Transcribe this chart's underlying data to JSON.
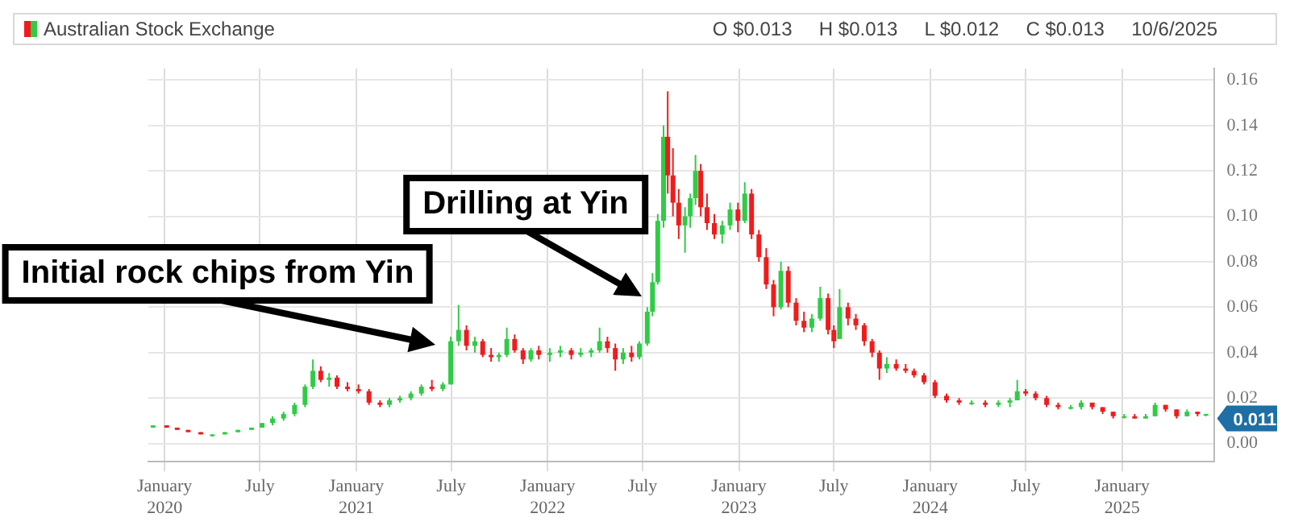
{
  "chart_data": {
    "type": "candlestick",
    "title": "Australian Stock Exchange",
    "subtitle": "O $0.013     H $0.013     L $0.012     C $0.013     10/6/2025",
    "annotations": [
      "Initial rock chips from Yin",
      "Drilling at Yin",
      {
        "text": "0.011",
        "y": 0.011
      }
    ],
    "x": [
      "2019-12-10",
      "2020-01-05",
      "2020-01-25",
      "2020-02-15",
      "2020-03-10",
      "2020-04-01",
      "2020-04-25",
      "2020-05-20",
      "2020-06-15",
      "2020-07-05",
      "2020-07-25",
      "2020-08-15",
      "2020-09-05",
      "2020-09-25",
      "2020-10-10",
      "2020-10-25",
      "2020-11-10",
      "2020-11-25",
      "2020-12-15",
      "2021-01-05",
      "2021-01-25",
      "2021-02-15",
      "2021-03-05",
      "2021-03-25",
      "2021-04-15",
      "2021-05-05",
      "2021-05-25",
      "2021-06-15",
      "2021-06-30",
      "2021-07-15",
      "2021-07-30",
      "2021-08-15",
      "2021-08-30",
      "2021-09-15",
      "2021-09-30",
      "2021-10-15",
      "2021-10-30",
      "2021-11-15",
      "2021-11-30",
      "2021-12-15",
      "2022-01-05",
      "2022-01-25",
      "2022-02-15",
      "2022-03-05",
      "2022-03-25",
      "2022-04-10",
      "2022-04-25",
      "2022-05-10",
      "2022-05-25",
      "2022-06-10",
      "2022-06-25",
      "2022-07-10",
      "2022-07-20",
      "2022-07-30",
      "2022-08-10",
      "2022-08-18",
      "2022-08-28",
      "2022-09-08",
      "2022-09-20",
      "2022-09-30",
      "2022-10-10",
      "2022-10-20",
      "2022-11-01",
      "2022-11-15",
      "2022-11-30",
      "2022-12-15",
      "2022-12-30",
      "2023-01-12",
      "2023-01-25",
      "2023-02-08",
      "2023-02-22",
      "2023-03-08",
      "2023-03-22",
      "2023-04-05",
      "2023-04-20",
      "2023-05-05",
      "2023-05-20",
      "2023-06-05",
      "2023-06-20",
      "2023-07-01",
      "2023-07-12",
      "2023-07-28",
      "2023-08-12",
      "2023-08-28",
      "2023-09-12",
      "2023-09-26",
      "2023-10-10",
      "2023-10-28",
      "2023-11-15",
      "2023-12-01",
      "2023-12-20",
      "2024-01-10",
      "2024-02-01",
      "2024-02-25",
      "2024-03-20",
      "2024-04-15",
      "2024-05-10",
      "2024-06-01",
      "2024-06-15",
      "2024-07-01",
      "2024-07-20",
      "2024-08-10",
      "2024-09-01",
      "2024-09-25",
      "2024-10-15",
      "2024-11-05",
      "2024-11-25",
      "2024-12-15",
      "2025-01-05",
      "2025-01-25",
      "2025-02-15",
      "2025-03-05",
      "2025-03-25",
      "2025-04-15",
      "2025-05-05",
      "2025-05-25",
      "2025-06-10"
    ],
    "ohlc": [
      [
        0.007,
        0.008,
        0.007,
        0.008
      ],
      [
        0.008,
        0.008,
        0.007,
        0.007
      ],
      [
        0.007,
        0.007,
        0.006,
        0.006
      ],
      [
        0.006,
        0.006,
        0.005,
        0.005
      ],
      [
        0.005,
        0.005,
        0.004,
        0.004
      ],
      [
        0.004,
        0.004,
        0.003,
        0.004
      ],
      [
        0.004,
        0.005,
        0.004,
        0.005
      ],
      [
        0.005,
        0.006,
        0.005,
        0.006
      ],
      [
        0.006,
        0.007,
        0.006,
        0.007
      ],
      [
        0.007,
        0.009,
        0.007,
        0.009
      ],
      [
        0.009,
        0.012,
        0.008,
        0.011
      ],
      [
        0.011,
        0.014,
        0.01,
        0.013
      ],
      [
        0.013,
        0.018,
        0.012,
        0.017
      ],
      [
        0.017,
        0.026,
        0.016,
        0.025
      ],
      [
        0.025,
        0.037,
        0.024,
        0.032
      ],
      [
        0.032,
        0.034,
        0.027,
        0.028
      ],
      [
        0.028,
        0.031,
        0.025,
        0.029
      ],
      [
        0.029,
        0.03,
        0.024,
        0.025
      ],
      [
        0.025,
        0.027,
        0.023,
        0.024
      ],
      [
        0.024,
        0.026,
        0.022,
        0.023
      ],
      [
        0.023,
        0.024,
        0.017,
        0.018
      ],
      [
        0.018,
        0.019,
        0.016,
        0.017
      ],
      [
        0.017,
        0.02,
        0.016,
        0.019
      ],
      [
        0.019,
        0.021,
        0.018,
        0.02
      ],
      [
        0.02,
        0.023,
        0.019,
        0.022
      ],
      [
        0.022,
        0.026,
        0.021,
        0.025
      ],
      [
        0.025,
        0.028,
        0.023,
        0.024
      ],
      [
        0.024,
        0.027,
        0.023,
        0.026
      ],
      [
        0.026,
        0.047,
        0.026,
        0.045
      ],
      [
        0.045,
        0.061,
        0.043,
        0.05
      ],
      [
        0.05,
        0.052,
        0.041,
        0.043
      ],
      [
        0.043,
        0.047,
        0.04,
        0.045
      ],
      [
        0.045,
        0.046,
        0.038,
        0.039
      ],
      [
        0.039,
        0.042,
        0.036,
        0.038
      ],
      [
        0.038,
        0.04,
        0.036,
        0.039
      ],
      [
        0.039,
        0.051,
        0.038,
        0.046
      ],
      [
        0.046,
        0.048,
        0.04,
        0.041
      ],
      [
        0.041,
        0.042,
        0.035,
        0.037
      ],
      [
        0.037,
        0.042,
        0.036,
        0.041
      ],
      [
        0.041,
        0.043,
        0.037,
        0.039
      ],
      [
        0.039,
        0.042,
        0.036,
        0.04
      ],
      [
        0.04,
        0.043,
        0.038,
        0.041
      ],
      [
        0.041,
        0.042,
        0.037,
        0.039
      ],
      [
        0.039,
        0.042,
        0.038,
        0.04
      ],
      [
        0.04,
        0.042,
        0.038,
        0.041
      ],
      [
        0.041,
        0.051,
        0.04,
        0.045
      ],
      [
        0.045,
        0.047,
        0.04,
        0.042
      ],
      [
        0.042,
        0.044,
        0.032,
        0.037
      ],
      [
        0.037,
        0.042,
        0.035,
        0.04
      ],
      [
        0.04,
        0.043,
        0.036,
        0.038
      ],
      [
        0.038,
        0.045,
        0.037,
        0.044
      ],
      [
        0.044,
        0.06,
        0.043,
        0.058
      ],
      [
        0.058,
        0.075,
        0.056,
        0.071
      ],
      [
        0.071,
        0.101,
        0.07,
        0.098
      ],
      [
        0.098,
        0.14,
        0.095,
        0.135
      ],
      [
        0.135,
        0.155,
        0.11,
        0.118
      ],
      [
        0.118,
        0.13,
        0.1,
        0.106
      ],
      [
        0.106,
        0.112,
        0.09,
        0.096
      ],
      [
        0.096,
        0.104,
        0.084,
        0.1
      ],
      [
        0.1,
        0.11,
        0.095,
        0.108
      ],
      [
        0.108,
        0.127,
        0.105,
        0.12
      ],
      [
        0.12,
        0.123,
        0.1,
        0.104
      ],
      [
        0.104,
        0.11,
        0.094,
        0.097
      ],
      [
        0.097,
        0.101,
        0.09,
        0.092
      ],
      [
        0.092,
        0.098,
        0.088,
        0.096
      ],
      [
        0.096,
        0.106,
        0.094,
        0.103
      ],
      [
        0.103,
        0.106,
        0.093,
        0.098
      ],
      [
        0.098,
        0.115,
        0.097,
        0.11
      ],
      [
        0.11,
        0.112,
        0.09,
        0.092
      ],
      [
        0.092,
        0.094,
        0.08,
        0.082
      ],
      [
        0.082,
        0.086,
        0.068,
        0.07
      ],
      [
        0.07,
        0.072,
        0.056,
        0.06
      ],
      [
        0.06,
        0.08,
        0.059,
        0.076
      ],
      [
        0.076,
        0.078,
        0.06,
        0.062
      ],
      [
        0.062,
        0.064,
        0.052,
        0.054
      ],
      [
        0.054,
        0.058,
        0.049,
        0.051
      ],
      [
        0.051,
        0.057,
        0.049,
        0.055
      ],
      [
        0.055,
        0.069,
        0.054,
        0.064
      ],
      [
        0.064,
        0.066,
        0.048,
        0.05
      ],
      [
        0.05,
        0.052,
        0.042,
        0.045
      ],
      [
        0.046,
        0.068,
        0.046,
        0.06
      ],
      [
        0.06,
        0.062,
        0.052,
        0.055
      ],
      [
        0.055,
        0.057,
        0.05,
        0.052
      ],
      [
        0.052,
        0.053,
        0.043,
        0.045
      ],
      [
        0.045,
        0.046,
        0.038,
        0.04
      ],
      [
        0.04,
        0.041,
        0.028,
        0.033
      ],
      [
        0.033,
        0.038,
        0.031,
        0.035
      ],
      [
        0.035,
        0.037,
        0.032,
        0.033
      ],
      [
        0.033,
        0.035,
        0.031,
        0.032
      ],
      [
        0.032,
        0.033,
        0.029,
        0.03
      ],
      [
        0.03,
        0.031,
        0.026,
        0.027
      ],
      [
        0.027,
        0.028,
        0.02,
        0.021
      ],
      [
        0.021,
        0.022,
        0.018,
        0.019
      ],
      [
        0.019,
        0.02,
        0.017,
        0.018
      ],
      [
        0.018,
        0.019,
        0.017,
        0.018
      ],
      [
        0.018,
        0.019,
        0.016,
        0.017
      ],
      [
        0.017,
        0.019,
        0.016,
        0.018
      ],
      [
        0.018,
        0.02,
        0.016,
        0.019
      ],
      [
        0.019,
        0.028,
        0.019,
        0.023
      ],
      [
        0.023,
        0.024,
        0.021,
        0.022
      ],
      [
        0.022,
        0.023,
        0.019,
        0.02
      ],
      [
        0.02,
        0.021,
        0.016,
        0.017
      ],
      [
        0.017,
        0.018,
        0.015,
        0.016
      ],
      [
        0.016,
        0.017,
        0.015,
        0.016
      ],
      [
        0.016,
        0.019,
        0.015,
        0.018
      ],
      [
        0.018,
        0.018,
        0.015,
        0.016
      ],
      [
        0.016,
        0.016,
        0.013,
        0.014
      ],
      [
        0.014,
        0.014,
        0.011,
        0.012
      ],
      [
        0.012,
        0.013,
        0.011,
        0.012
      ],
      [
        0.012,
        0.013,
        0.011,
        0.011
      ],
      [
        0.011,
        0.013,
        0.011,
        0.012
      ],
      [
        0.012,
        0.018,
        0.012,
        0.017
      ],
      [
        0.017,
        0.017,
        0.014,
        0.015
      ],
      [
        0.015,
        0.015,
        0.011,
        0.012
      ],
      [
        0.012,
        0.015,
        0.012,
        0.014
      ],
      [
        0.014,
        0.014,
        0.012,
        0.013
      ],
      [
        0.013,
        0.013,
        0.012,
        0.013
      ]
    ],
    "xlim": [
      "2019-12-01",
      "2025-06-25"
    ],
    "xticks": [
      {
        "value": "2020-01-01",
        "label": "January 2020"
      },
      {
        "value": "2020-07-01",
        "label": "July"
      },
      {
        "value": "2021-01-01",
        "label": "January 2021"
      },
      {
        "value": "2021-07-01",
        "label": "July"
      },
      {
        "value": "2022-01-01",
        "label": "January 2022"
      },
      {
        "value": "2022-07-01",
        "label": "July"
      },
      {
        "value": "2023-01-01",
        "label": "January 2023"
      },
      {
        "value": "2023-07-01",
        "label": "July"
      },
      {
        "value": "2024-01-01",
        "label": "January 2024"
      },
      {
        "value": "2024-07-01",
        "label": "July"
      },
      {
        "value": "2025-01-01",
        "label": "January 2025"
      }
    ],
    "ylim": [
      -0.008,
      0.165
    ],
    "yticks": [
      {
        "value": 0,
        "label": "0.00"
      },
      {
        "value": 0.02,
        "label": "0.02"
      },
      {
        "value": 0.04,
        "label": "0.04"
      },
      {
        "value": 0.06,
        "label": "0.06"
      },
      {
        "value": 0.08,
        "label": "0.08"
      },
      {
        "value": 0.1,
        "label": "0.10"
      },
      {
        "value": 0.12,
        "label": "0.12"
      },
      {
        "value": 0.14,
        "label": "0.14"
      },
      {
        "value": 0.16,
        "label": "0.16"
      }
    ],
    "grid": true,
    "legend": false
  }
}
